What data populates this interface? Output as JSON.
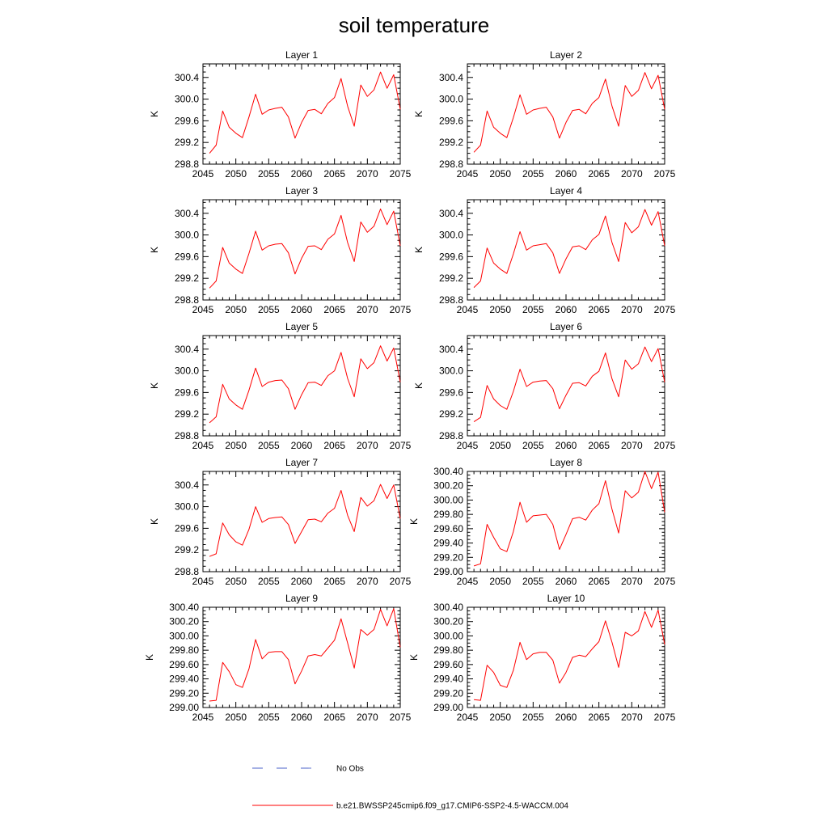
{
  "title": "soil temperature",
  "colors": {
    "model": "#ff0000",
    "obs": "#4a62c8",
    "axis": "#000000"
  },
  "chart_data": [
    {
      "type": "line",
      "title": "Layer 1",
      "ylabel": "K",
      "xlim": [
        2045,
        2075
      ],
      "xticks": [
        "2045",
        "2050",
        "2055",
        "2060",
        "2065",
        "2070",
        "2075"
      ],
      "ylim": [
        298.8,
        300.65
      ],
      "yticks": [
        298.8,
        299.2,
        299.6,
        300.0,
        300.4
      ],
      "ytick_labels": [
        "298.8",
        "299.2",
        "299.6",
        "300.0",
        "300.4"
      ],
      "x": [
        2046,
        2047,
        2048,
        2049,
        2050,
        2051,
        2052,
        2053,
        2054,
        2055,
        2056,
        2057,
        2058,
        2059,
        2060,
        2061,
        2062,
        2063,
        2064,
        2065,
        2066,
        2067,
        2068,
        2069,
        2070,
        2071,
        2072,
        2073,
        2074,
        2075
      ],
      "series": [
        {
          "name": "b.e21.BWSSP245cmip6.f09_g17.CMIP6-SSP2-4.5-WACCM.004",
          "values": [
            299.0,
            299.15,
            299.78,
            299.48,
            299.37,
            299.29,
            299.67,
            300.09,
            299.72,
            299.8,
            299.83,
            299.85,
            299.67,
            299.28,
            299.57,
            299.79,
            299.81,
            299.73,
            299.92,
            300.03,
            300.38,
            299.87,
            299.5,
            300.26,
            300.05,
            300.17,
            300.5,
            300.2,
            300.45,
            299.81
          ]
        }
      ]
    },
    {
      "type": "line",
      "title": "Layer 2",
      "ylabel": "K",
      "xlim": [
        2045,
        2075
      ],
      "xticks": [
        "2045",
        "2050",
        "2055",
        "2060",
        "2065",
        "2070",
        "2075"
      ],
      "ylim": [
        298.8,
        300.65
      ],
      "yticks": [
        298.8,
        299.2,
        299.6,
        300.0,
        300.4
      ],
      "ytick_labels": [
        "298.8",
        "299.2",
        "299.6",
        "300.0",
        "300.4"
      ],
      "x": [
        2046,
        2047,
        2048,
        2049,
        2050,
        2051,
        2052,
        2053,
        2054,
        2055,
        2056,
        2057,
        2058,
        2059,
        2060,
        2061,
        2062,
        2063,
        2064,
        2065,
        2066,
        2067,
        2068,
        2069,
        2070,
        2071,
        2072,
        2073,
        2074,
        2075
      ],
      "series": [
        {
          "name": "b.e21.BWSSP245cmip6.f09_g17.CMIP6-SSP2-4.5-WACCM.004",
          "values": [
            299.02,
            299.15,
            299.78,
            299.48,
            299.37,
            299.29,
            299.66,
            300.08,
            299.72,
            299.8,
            299.83,
            299.85,
            299.67,
            299.28,
            299.57,
            299.79,
            299.81,
            299.73,
            299.92,
            300.03,
            300.37,
            299.87,
            299.5,
            300.25,
            300.05,
            300.16,
            300.49,
            300.19,
            300.44,
            299.81
          ]
        }
      ]
    },
    {
      "type": "line",
      "title": "Layer 3",
      "ylabel": "K",
      "xlim": [
        2045,
        2075
      ],
      "xticks": [
        "2045",
        "2050",
        "2055",
        "2060",
        "2065",
        "2070",
        "2075"
      ],
      "ylim": [
        298.8,
        300.65
      ],
      "yticks": [
        298.8,
        299.2,
        299.6,
        300.0,
        300.4
      ],
      "ytick_labels": [
        "298.8",
        "299.2",
        "299.6",
        "300.0",
        "300.4"
      ],
      "x": [
        2046,
        2047,
        2048,
        2049,
        2050,
        2051,
        2052,
        2053,
        2054,
        2055,
        2056,
        2057,
        2058,
        2059,
        2060,
        2061,
        2062,
        2063,
        2064,
        2065,
        2066,
        2067,
        2068,
        2069,
        2070,
        2071,
        2072,
        2073,
        2074,
        2075
      ],
      "series": [
        {
          "name": "b.e21.BWSSP245cmip6.f09_g17.CMIP6-SSP2-4.5-WACCM.004",
          "values": [
            299.02,
            299.15,
            299.77,
            299.48,
            299.37,
            299.29,
            299.66,
            300.07,
            299.72,
            299.8,
            299.83,
            299.84,
            299.67,
            299.28,
            299.57,
            299.79,
            299.8,
            299.73,
            299.92,
            300.02,
            300.36,
            299.86,
            299.51,
            300.24,
            300.05,
            300.16,
            300.48,
            300.19,
            300.44,
            299.8
          ]
        }
      ]
    },
    {
      "type": "line",
      "title": "Layer 4",
      "ylabel": "K",
      "xlim": [
        2045,
        2075
      ],
      "xticks": [
        "2045",
        "2050",
        "2055",
        "2060",
        "2065",
        "2070",
        "2075"
      ],
      "ylim": [
        298.8,
        300.65
      ],
      "yticks": [
        298.8,
        299.2,
        299.6,
        300.0,
        300.4
      ],
      "ytick_labels": [
        "298.8",
        "299.2",
        "299.6",
        "300.0",
        "300.4"
      ],
      "x": [
        2046,
        2047,
        2048,
        2049,
        2050,
        2051,
        2052,
        2053,
        2054,
        2055,
        2056,
        2057,
        2058,
        2059,
        2060,
        2061,
        2062,
        2063,
        2064,
        2065,
        2066,
        2067,
        2068,
        2069,
        2070,
        2071,
        2072,
        2073,
        2074,
        2075
      ],
      "series": [
        {
          "name": "b.e21.BWSSP245cmip6.f09_g17.CMIP6-SSP2-4.5-WACCM.004",
          "values": [
            299.03,
            299.15,
            299.76,
            299.48,
            299.37,
            299.29,
            299.65,
            300.06,
            299.72,
            299.8,
            299.82,
            299.84,
            299.67,
            299.29,
            299.56,
            299.78,
            299.8,
            299.73,
            299.91,
            300.01,
            300.35,
            299.86,
            299.51,
            300.23,
            300.04,
            300.15,
            300.47,
            300.18,
            300.43,
            299.8
          ]
        }
      ]
    },
    {
      "type": "line",
      "title": "Layer 5",
      "ylabel": "K",
      "xlim": [
        2045,
        2075
      ],
      "xticks": [
        "2045",
        "2050",
        "2055",
        "2060",
        "2065",
        "2070",
        "2075"
      ],
      "ylim": [
        298.8,
        300.65
      ],
      "yticks": [
        298.8,
        299.2,
        299.6,
        300.0,
        300.4
      ],
      "ytick_labels": [
        "298.8",
        "299.2",
        "299.6",
        "300.0",
        "300.4"
      ],
      "x": [
        2046,
        2047,
        2048,
        2049,
        2050,
        2051,
        2052,
        2053,
        2054,
        2055,
        2056,
        2057,
        2058,
        2059,
        2060,
        2061,
        2062,
        2063,
        2064,
        2065,
        2066,
        2067,
        2068,
        2069,
        2070,
        2071,
        2072,
        2073,
        2074,
        2075
      ],
      "series": [
        {
          "name": "b.e21.BWSSP245cmip6.f09_g17.CMIP6-SSP2-4.5-WACCM.004",
          "values": [
            299.04,
            299.15,
            299.75,
            299.48,
            299.37,
            299.29,
            299.64,
            300.05,
            299.71,
            299.79,
            299.82,
            299.83,
            299.67,
            299.29,
            299.56,
            299.78,
            299.79,
            299.73,
            299.91,
            300.0,
            300.34,
            299.86,
            299.52,
            300.22,
            300.04,
            300.15,
            300.46,
            300.18,
            300.42,
            299.79
          ]
        }
      ]
    },
    {
      "type": "line",
      "title": "Layer 6",
      "ylabel": "K",
      "xlim": [
        2045,
        2075
      ],
      "xticks": [
        "2045",
        "2050",
        "2055",
        "2060",
        "2065",
        "2070",
        "2075"
      ],
      "ylim": [
        298.8,
        300.65
      ],
      "yticks": [
        298.8,
        299.2,
        299.6,
        300.0,
        300.4
      ],
      "ytick_labels": [
        "298.8",
        "299.2",
        "299.6",
        "300.0",
        "300.4"
      ],
      "x": [
        2046,
        2047,
        2048,
        2049,
        2050,
        2051,
        2052,
        2053,
        2054,
        2055,
        2056,
        2057,
        2058,
        2059,
        2060,
        2061,
        2062,
        2063,
        2064,
        2065,
        2066,
        2067,
        2068,
        2069,
        2070,
        2071,
        2072,
        2073,
        2074,
        2075
      ],
      "series": [
        {
          "name": "b.e21.BWSSP245cmip6.f09_g17.CMIP6-SSP2-4.5-WACCM.004",
          "values": [
            299.06,
            299.14,
            299.73,
            299.48,
            299.36,
            299.29,
            299.62,
            300.03,
            299.71,
            299.79,
            299.81,
            299.82,
            299.67,
            299.3,
            299.55,
            299.77,
            299.78,
            299.72,
            299.9,
            299.99,
            300.33,
            299.85,
            299.52,
            300.2,
            300.03,
            300.13,
            300.44,
            300.17,
            300.41,
            299.79
          ]
        }
      ]
    },
    {
      "type": "line",
      "title": "Layer 7",
      "ylabel": "K",
      "xlim": [
        2045,
        2075
      ],
      "xticks": [
        "2045",
        "2050",
        "2055",
        "2060",
        "2065",
        "2070",
        "2075"
      ],
      "ylim": [
        298.8,
        300.65
      ],
      "yticks": [
        298.8,
        299.2,
        299.6,
        300.0,
        300.4
      ],
      "ytick_labels": [
        "298.8",
        "299.2",
        "299.6",
        "300.0",
        "300.4"
      ],
      "x": [
        2046,
        2047,
        2048,
        2049,
        2050,
        2051,
        2052,
        2053,
        2054,
        2055,
        2056,
        2057,
        2058,
        2059,
        2060,
        2061,
        2062,
        2063,
        2064,
        2065,
        2066,
        2067,
        2068,
        2069,
        2070,
        2071,
        2072,
        2073,
        2074,
        2075
      ],
      "series": [
        {
          "name": "b.e21.BWSSP245cmip6.f09_g17.CMIP6-SSP2-4.5-WACCM.004",
          "values": [
            299.08,
            299.13,
            299.7,
            299.48,
            299.35,
            299.29,
            299.58,
            300.0,
            299.71,
            299.78,
            299.8,
            299.81,
            299.67,
            299.32,
            299.54,
            299.76,
            299.77,
            299.72,
            299.88,
            299.97,
            300.3,
            299.84,
            299.54,
            300.17,
            300.01,
            300.11,
            300.41,
            300.15,
            300.4,
            299.78
          ]
        }
      ]
    },
    {
      "type": "line",
      "title": "Layer 8",
      "ylabel": "K",
      "xlim": [
        2045,
        2075
      ],
      "xticks": [
        "2045",
        "2050",
        "2055",
        "2060",
        "2065",
        "2070",
        "2075"
      ],
      "ylim": [
        299.0,
        300.4
      ],
      "yticks": [
        299.0,
        299.2,
        299.4,
        299.6,
        299.8,
        300.0,
        300.2,
        300.4
      ],
      "ytick_labels": [
        "299.00",
        "299.20",
        "299.40",
        "299.60",
        "299.80",
        "300.00",
        "300.20",
        "300.40"
      ],
      "x": [
        2046,
        2047,
        2048,
        2049,
        2050,
        2051,
        2052,
        2053,
        2054,
        2055,
        2056,
        2057,
        2058,
        2059,
        2060,
        2061,
        2062,
        2063,
        2064,
        2065,
        2066,
        2067,
        2068,
        2069,
        2070,
        2071,
        2072,
        2073,
        2074,
        2075
      ],
      "series": [
        {
          "name": "b.e21.BWSSP245cmip6.f09_g17.CMIP6-SSP2-4.5-WACCM.004",
          "values": [
            299.08,
            299.11,
            299.66,
            299.48,
            299.32,
            299.28,
            299.56,
            299.97,
            299.69,
            299.78,
            299.79,
            299.8,
            299.66,
            299.31,
            299.52,
            299.74,
            299.76,
            299.72,
            299.86,
            299.95,
            300.27,
            299.87,
            299.54,
            300.13,
            300.03,
            300.11,
            300.4,
            300.16,
            300.39,
            299.83
          ]
        }
      ]
    },
    {
      "type": "line",
      "title": "Layer 9",
      "ylabel": "K",
      "xlim": [
        2045,
        2075
      ],
      "xticks": [
        "2045",
        "2050",
        "2055",
        "2060",
        "2065",
        "2070",
        "2075"
      ],
      "ylim": [
        299.0,
        300.4
      ],
      "yticks": [
        299.0,
        299.2,
        299.4,
        299.6,
        299.8,
        300.0,
        300.2,
        300.4
      ],
      "ytick_labels": [
        "299.00",
        "299.20",
        "299.40",
        "299.60",
        "299.80",
        "300.00",
        "300.20",
        "300.40"
      ],
      "x": [
        2046,
        2047,
        2048,
        2049,
        2050,
        2051,
        2052,
        2053,
        2054,
        2055,
        2056,
        2057,
        2058,
        2059,
        2060,
        2061,
        2062,
        2063,
        2064,
        2065,
        2066,
        2067,
        2068,
        2069,
        2070,
        2071,
        2072,
        2073,
        2074,
        2075
      ],
      "series": [
        {
          "name": "b.e21.BWSSP245cmip6.f09_g17.CMIP6-SSP2-4.5-WACCM.004",
          "values": [
            299.09,
            299.1,
            299.63,
            299.5,
            299.32,
            299.28,
            299.54,
            299.95,
            299.68,
            299.77,
            299.78,
            299.78,
            299.67,
            299.33,
            299.51,
            299.72,
            299.74,
            299.72,
            299.83,
            299.94,
            300.24,
            299.9,
            299.55,
            300.09,
            300.01,
            300.09,
            300.37,
            300.14,
            300.38,
            299.84
          ]
        }
      ]
    },
    {
      "type": "line",
      "title": "Layer 10",
      "ylabel": "K",
      "xlim": [
        2045,
        2075
      ],
      "xticks": [
        "2045",
        "2050",
        "2055",
        "2060",
        "2065",
        "2070",
        "2075"
      ],
      "ylim": [
        299.0,
        300.4
      ],
      "yticks": [
        299.0,
        299.2,
        299.4,
        299.6,
        299.8,
        300.0,
        300.2,
        300.4
      ],
      "ytick_labels": [
        "299.00",
        "299.20",
        "299.40",
        "299.60",
        "299.80",
        "300.00",
        "300.20",
        "300.40"
      ],
      "x": [
        2046,
        2047,
        2048,
        2049,
        2050,
        2051,
        2052,
        2053,
        2054,
        2055,
        2056,
        2057,
        2058,
        2059,
        2060,
        2061,
        2062,
        2063,
        2064,
        2065,
        2066,
        2067,
        2068,
        2069,
        2070,
        2071,
        2072,
        2073,
        2074,
        2075
      ],
      "series": [
        {
          "name": "b.e21.BWSSP245cmip6.f09_g17.CMIP6-SSP2-4.5-WACCM.004",
          "values": [
            299.11,
            299.1,
            299.59,
            299.49,
            299.31,
            299.28,
            299.52,
            299.91,
            299.67,
            299.75,
            299.77,
            299.77,
            299.66,
            299.34,
            299.49,
            299.7,
            299.73,
            299.71,
            299.82,
            299.92,
            300.21,
            299.91,
            299.56,
            300.05,
            300.0,
            300.07,
            300.34,
            300.12,
            300.36,
            299.88
          ]
        }
      ]
    }
  ],
  "legend": {
    "obs_label": "No Obs",
    "model_label": "b.e21.BWSSP245cmip6.f09_g17.CMIP6-SSP2-4.5-WACCM.004"
  }
}
